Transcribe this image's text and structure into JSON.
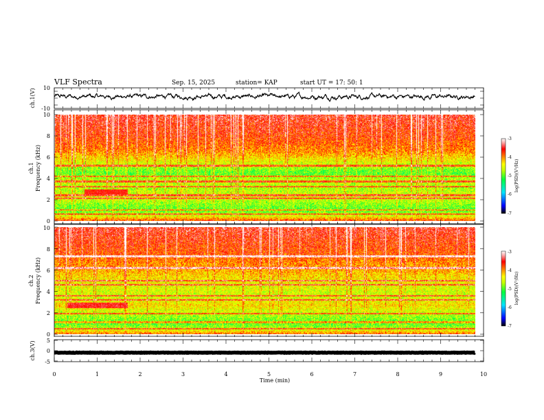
{
  "header": {
    "title": "VLF Spectra",
    "date": "Sep. 15, 2025",
    "station": "station= KAP",
    "start_ut": "start  UT  =   17: 50: 1"
  },
  "colors": {
    "background": "#ffffff",
    "axis": "#000000",
    "trace": "#000000",
    "colormap": [
      "#000000",
      "#0000ff",
      "#00e5ff",
      "#00ff40",
      "#c8ff00",
      "#ffff00",
      "#ff8000",
      "#ff0000",
      "#ffb4b4",
      "#ffffff"
    ]
  },
  "chart_data": [
    {
      "type": "line",
      "name": "ch1-waveform",
      "ylabel": "ch.1(V)",
      "ylim": [
        -10,
        10
      ],
      "yticks": [
        "10",
        "-10"
      ],
      "xlim": [
        0,
        10
      ],
      "description_series": "broadband noisy trace oscillating mostly between about -4 and +6 V",
      "level_mean": 1.5,
      "level_amplitude": 3.5
    },
    {
      "type": "heatmap",
      "name": "ch1-spectrogram",
      "ylabel": "ch.1\nFrequency (kHz)",
      "ylabel_lines": [
        "ch.1",
        "Frequency (kHz)"
      ],
      "ylim": [
        0,
        10
      ],
      "yticks": [
        "0",
        "2",
        "4",
        "6",
        "8",
        "10"
      ],
      "xlim": [
        0,
        9.8
      ],
      "colorbar": {
        "label": "log(PSD)(V²/Hz)",
        "range": [
          -7,
          -3
        ],
        "ticks": [
          "-3",
          "-4",
          "-5",
          "-6",
          "-7"
        ]
      },
      "base_profile_khz": [
        {
          "f": 0.0,
          "v": -3.8
        },
        {
          "f": 0.5,
          "v": -4.6
        },
        {
          "f": 1.0,
          "v": -5.0
        },
        {
          "f": 1.6,
          "v": -4.8
        },
        {
          "f": 2.2,
          "v": -4.5
        },
        {
          "f": 3.0,
          "v": -4.7
        },
        {
          "f": 3.8,
          "v": -4.6
        },
        {
          "f": 4.5,
          "v": -5.0
        },
        {
          "f": 5.5,
          "v": -4.5
        },
        {
          "f": 6.5,
          "v": -4.0
        },
        {
          "f": 8.0,
          "v": -3.7
        },
        {
          "f": 10.0,
          "v": -3.5
        }
      ],
      "lines_khz": [
        0.6,
        1.0,
        2.1,
        2.4,
        3.2,
        3.7,
        4.2,
        5.2
      ],
      "hiss_band": {
        "f_center": 2.7,
        "t_range": [
          0.7,
          1.7
        ],
        "v": -3.6
      }
    },
    {
      "type": "heatmap",
      "name": "ch2-spectrogram",
      "ylabel_lines": [
        "ch.2",
        "Frequency (kHz)"
      ],
      "ylim": [
        0,
        10
      ],
      "yticks": [
        "0",
        "2",
        "4",
        "6",
        "8",
        "10"
      ],
      "xlim": [
        0,
        9.8
      ],
      "colorbar": {
        "label": "log(PSD)(V²/Hz)",
        "range": [
          -7,
          -3
        ],
        "ticks": [
          "-3",
          "-4",
          "-5",
          "-6",
          "-7"
        ]
      },
      "base_profile_khz": [
        {
          "f": 0.0,
          "v": -3.9
        },
        {
          "f": 0.5,
          "v": -4.7
        },
        {
          "f": 1.0,
          "v": -5.0
        },
        {
          "f": 1.8,
          "v": -4.7
        },
        {
          "f": 2.7,
          "v": -4.3
        },
        {
          "f": 3.5,
          "v": -4.6
        },
        {
          "f": 4.3,
          "v": -4.5
        },
        {
          "f": 5.0,
          "v": -4.4
        },
        {
          "f": 6.0,
          "v": -4.1
        },
        {
          "f": 7.5,
          "v": -3.8
        },
        {
          "f": 10.0,
          "v": -3.5
        }
      ],
      "lines_khz": [
        0.5,
        1.1,
        1.9,
        3.2,
        3.6,
        4.6,
        5.0,
        6.2,
        7.3
      ],
      "hiss_band": {
        "f_center": 2.7,
        "t_range": [
          0.3,
          1.7
        ],
        "v": -3.5
      }
    },
    {
      "type": "line",
      "name": "ch3-waveform",
      "ylabel": "ch.3(V)",
      "ylim": [
        -5,
        5
      ],
      "yticks": [
        "5",
        "0",
        "-5"
      ],
      "xlim": [
        0,
        10
      ],
      "level": -0.9,
      "amplitude": 0.2,
      "xlabel": "Time  (min)",
      "xticks": [
        "0",
        "1",
        "2",
        "3",
        "4",
        "5",
        "6",
        "7",
        "8",
        "9",
        "10"
      ]
    }
  ]
}
